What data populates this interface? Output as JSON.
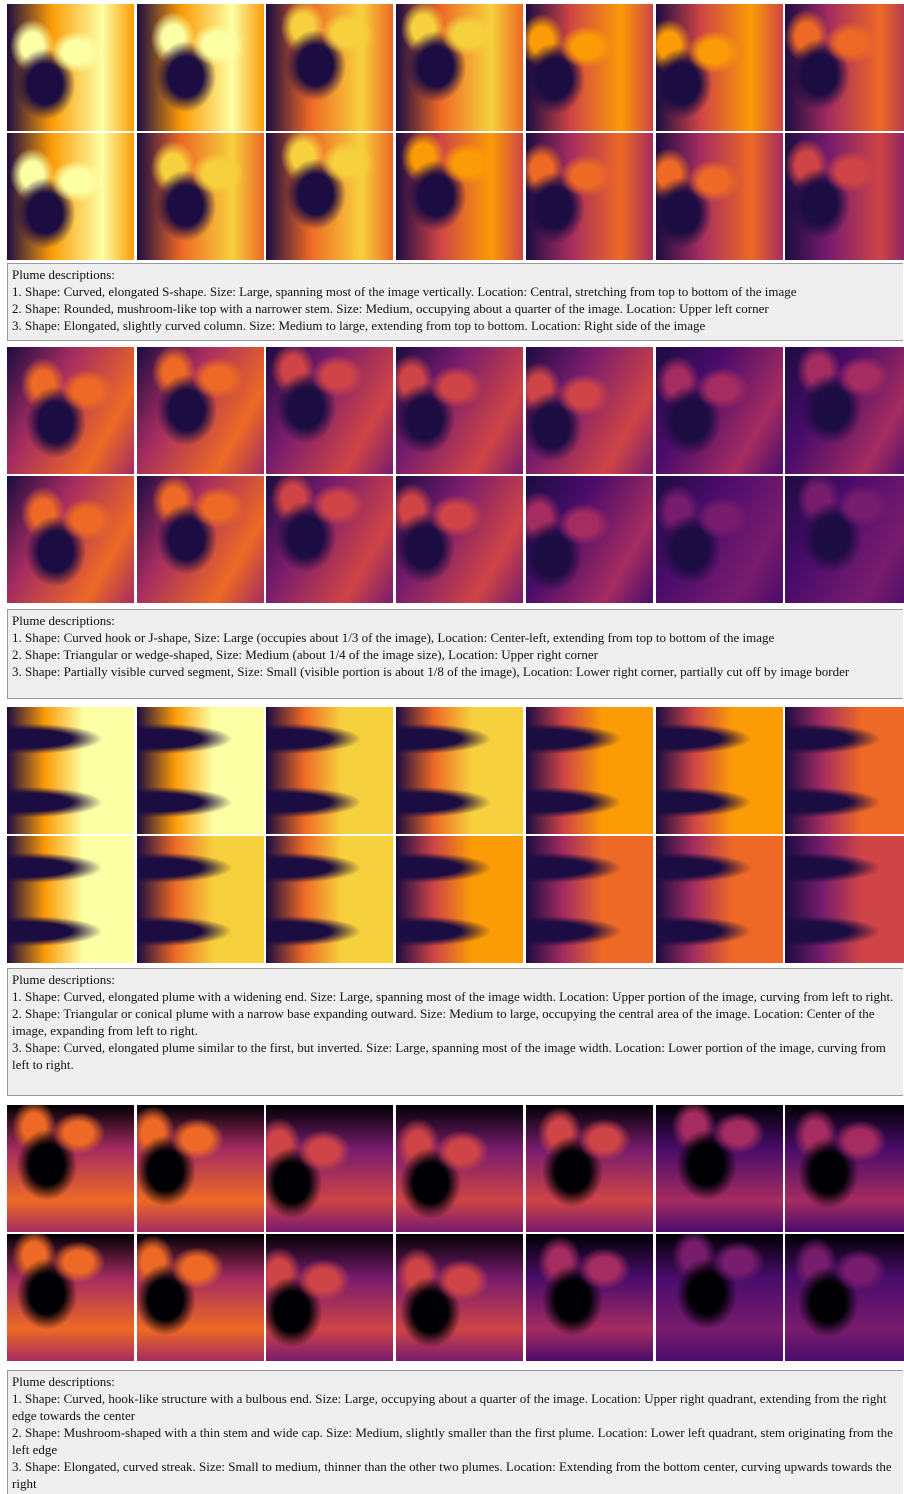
{
  "groups": [
    {
      "caption": {
        "heading": "Plume descriptions:",
        "lines": [
          "1. Shape: Curved, elongated S-shape. Size: Large, spanning most of the image vertically. Location: Central, stretching from top to bottom of the image",
          "2. Shape: Rounded, mushroom-like top with a narrower stem. Size: Medium, occupying about a quarter of the image. Location: Upper left corner",
          "3. Shape: Elongated, slightly curved column. Size: Medium to large, extending from top to bottom. Location: Right side of the image"
        ]
      }
    },
    {
      "caption": {
        "heading": "Plume descriptions:",
        "lines": [
          "1. Shape: Curved hook or J-shape, Size: Large (occupies about 1/3 of the image), Location: Center-left, extending from top to bottom of the image",
          "2. Shape: Triangular or wedge-shaped, Size: Medium (about 1/4 of the image size), Location: Upper right corner",
          "3. Shape: Partially visible curved segment, Size: Small (visible portion is about 1/8 of the image), Location: Lower right corner, partially cut off by image border"
        ]
      }
    },
    {
      "caption": {
        "heading": "Plume descriptions:",
        "lines": [
          "1. Shape: Curved, elongated plume with a widening end. Size: Large, spanning most of the image width. Location: Upper portion of the image, curving from left to right.",
          "2. Shape: Triangular or conical plume with a narrow base expanding outward. Size: Medium to large, occupying the central area of the image. Location: Center of the image, expanding from left to right.",
          "3. Shape: Curved, elongated plume similar to the first, but inverted. Size: Large, spanning most of the image width. Location: Lower portion of the image, curving from left to right."
        ]
      }
    },
    {
      "caption": {
        "heading": "Plume descriptions:",
        "lines": [
          "1. Shape: Curved, hook-like structure with a bulbous end. Size: Large, occupying about a quarter of the image. Location: Upper right quadrant, extending from the right edge towards the center",
          "2. Shape: Mushroom-shaped with a thin stem and wide cap. Size: Medium, slightly smaller than the first plume. Location: Lower left quadrant, stem originating from the left edge",
          "3. Shape: Elongated, curved streak. Size: Small to medium, thinner than the other two plumes. Location: Extending from the bottom center, curving upwards towards the right"
        ]
      }
    }
  ]
}
